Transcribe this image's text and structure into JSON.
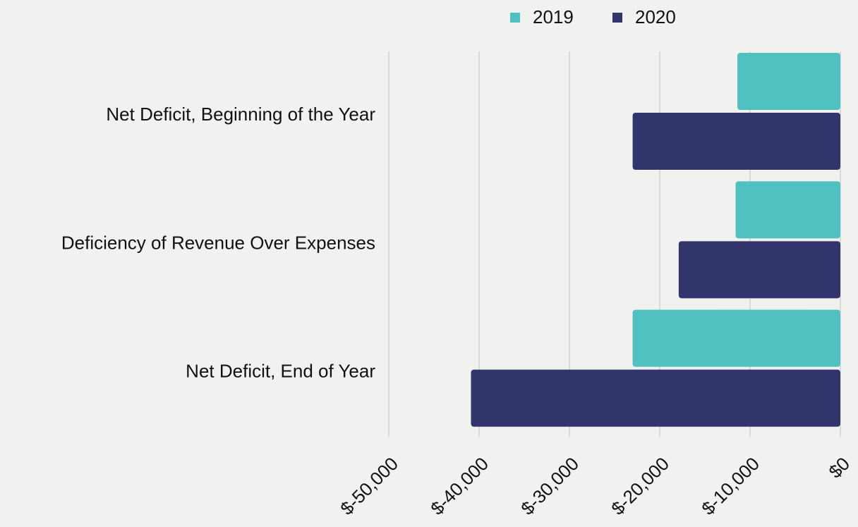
{
  "chart_data": {
    "type": "barh",
    "categories": [
      "Net Deficit, Beginning of the Year",
      "Deficiency of Revenue Over Expenses",
      "Net Deficit, End of Year"
    ],
    "series": [
      {
        "name": "2019",
        "color": "#50c0c1",
        "values": [
          -11400,
          -11600,
          -23000
        ]
      },
      {
        "name": "2020",
        "color": "#31356c",
        "values": [
          -23000,
          -17900,
          -40900
        ]
      }
    ],
    "xlim": [
      -50000,
      0
    ],
    "xticks": [
      {
        "value": -50000,
        "label": "$-50,000"
      },
      {
        "value": -40000,
        "label": "$-40,000"
      },
      {
        "value": -30000,
        "label": "$-30,000"
      },
      {
        "value": -20000,
        "label": "$-20,000"
      },
      {
        "value": -10000,
        "label": "$-10,000"
      },
      {
        "value": 0,
        "label": "$0"
      }
    ],
    "grid": true,
    "legend": "top"
  }
}
